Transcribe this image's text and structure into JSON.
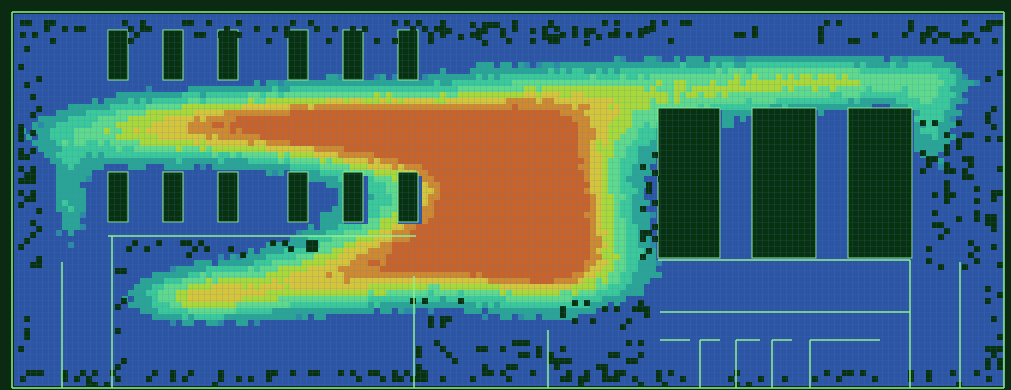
{
  "heatmap": {
    "description_colors": {
      "floor": "#2c56a4",
      "grid_line": "#5b8fd4",
      "obstacle": "#07310f",
      "wall": "#8ff08f",
      "low": "#2aa595",
      "mid": "#3fd49b",
      "high": "#a8d83a",
      "peak": "#c8b838",
      "hot": "#c8642a"
    },
    "colormap": [
      "#2c56a4",
      "#2c8aa6",
      "#2aa595",
      "#3cc99a",
      "#5fd98c",
      "#a8d83a",
      "#d4c53a",
      "#cf8a30",
      "#c8642a"
    ]
  },
  "cells": {
    "cell_size": 6
  }
}
